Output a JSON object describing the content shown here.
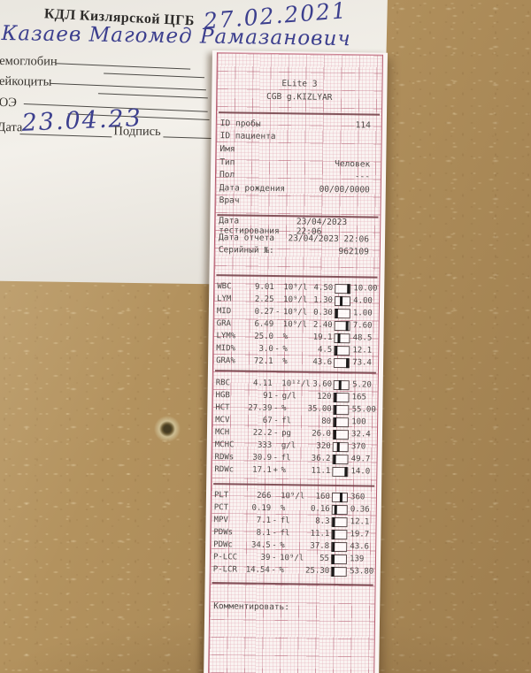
{
  "form": {
    "clinic_header": "КДЛ Кизлярской ЦГБ",
    "handwritten_date_top": "27.02.2021",
    "handwritten_name": "Казаев Магомед Рамазанович",
    "fields": [
      {
        "label": "емоглобин"
      },
      {
        "label": "ейкоциты"
      },
      {
        "label": "ОЭ"
      }
    ],
    "date_label": "Дата",
    "handwritten_date_value": "23.04.23",
    "signature_label": "Подпись"
  },
  "receipt": {
    "device": "ELite 3",
    "lab": "CGB g.KIZLYAR",
    "info_rows": [
      {
        "label": "ID пробы",
        "value": "114"
      },
      {
        "label": "ID пациента",
        "value": ""
      },
      {
        "label": "Имя",
        "value": ""
      },
      {
        "label": "Тип",
        "value": "Человек"
      },
      {
        "label": "Пол",
        "value": "---"
      },
      {
        "label": "Дата рождения",
        "value": "00/00/0000"
      },
      {
        "label": "Врач",
        "value": ""
      }
    ],
    "meta_rows": [
      {
        "label": "Дата тестирования",
        "value": "23/04/2023 22:06"
      },
      {
        "label": "Дата отчета",
        "value": "23/04/2023 22:06"
      },
      {
        "label": "Серийный №:",
        "value": "962109"
      }
    ],
    "results": {
      "sections": [
        {
          "group": "WBC",
          "rows": [
            {
              "name": "WBC",
              "value": "9.01",
              "flag": "",
              "unit": "10⁹/l",
              "low": "4.50",
              "high": "10.00"
            },
            {
              "name": "LYM",
              "value": "2.25",
              "flag": "",
              "unit": "10⁹/l",
              "low": "1.30",
              "high": "4.00"
            },
            {
              "name": "MID",
              "value": "0.27",
              "flag": "-",
              "unit": "10⁹/l",
              "low": "0.30",
              "high": "1.00"
            },
            {
              "name": "GRA",
              "value": "6.49",
              "flag": "",
              "unit": "10⁹/l",
              "low": "2.40",
              "high": "7.60"
            },
            {
              "name": "LYM%",
              "value": "25.0",
              "flag": "",
              "unit": "%",
              "low": "19.1",
              "high": "48.5"
            },
            {
              "name": "MID%",
              "value": "3.0",
              "flag": "-",
              "unit": "%",
              "low": "4.5",
              "high": "12.1"
            },
            {
              "name": "GRA%",
              "value": "72.1",
              "flag": "",
              "unit": "%",
              "low": "43.6",
              "high": "73.4"
            }
          ]
        },
        {
          "group": "RBC",
          "rows": [
            {
              "name": "RBC",
              "value": "4.11",
              "flag": "",
              "unit": "10¹²/l",
              "low": "3.60",
              "high": "5.20"
            },
            {
              "name": "HGB",
              "value": "91",
              "flag": "-",
              "unit": "g/l",
              "low": "120",
              "high": "165"
            },
            {
              "name": "HCT",
              "value": "27.39",
              "flag": "-",
              "unit": "%",
              "low": "35.00",
              "high": "55.00"
            },
            {
              "name": "MCV",
              "value": "67",
              "flag": "-",
              "unit": "fl",
              "low": "80",
              "high": "100"
            },
            {
              "name": "MCH",
              "value": "22.2",
              "flag": "-",
              "unit": "pg",
              "low": "26.0",
              "high": "32.4"
            },
            {
              "name": "MCHC",
              "value": "333",
              "flag": "",
              "unit": "g/l",
              "low": "320",
              "high": "370"
            },
            {
              "name": "RDWs",
              "value": "30.9",
              "flag": "-",
              "unit": "fl",
              "low": "36.2",
              "high": "49.7"
            },
            {
              "name": "RDWc",
              "value": "17.1",
              "flag": "+",
              "unit": "%",
              "low": "11.1",
              "high": "14.0"
            }
          ]
        },
        {
          "group": "PLT",
          "rows": [
            {
              "name": "PLT",
              "value": "266",
              "flag": "",
              "unit": "10⁹/l",
              "low": "160",
              "high": "360"
            },
            {
              "name": "PCT",
              "value": "0.19",
              "flag": "",
              "unit": "%",
              "low": "0.16",
              "high": "0.36"
            },
            {
              "name": "MPV",
              "value": "7.1",
              "flag": "-",
              "unit": "fl",
              "low": "8.3",
              "high": "12.1"
            },
            {
              "name": "PDWs",
              "value": "8.1",
              "flag": "-",
              "unit": "fl",
              "low": "11.1",
              "high": "19.7"
            },
            {
              "name": "PDWc",
              "value": "34.5",
              "flag": "-",
              "unit": "%",
              "low": "37.8",
              "high": "43.6"
            },
            {
              "name": "P-LCC",
              "value": "39",
              "flag": "-",
              "unit": "10⁹/l",
              "low": "55",
              "high": "139"
            },
            {
              "name": "P-LCR",
              "value": "14.54",
              "flag": "-",
              "unit": "%",
              "low": "25.30",
              "high": "53.80"
            }
          ]
        }
      ]
    },
    "comment_label": "Комментировать:"
  }
}
